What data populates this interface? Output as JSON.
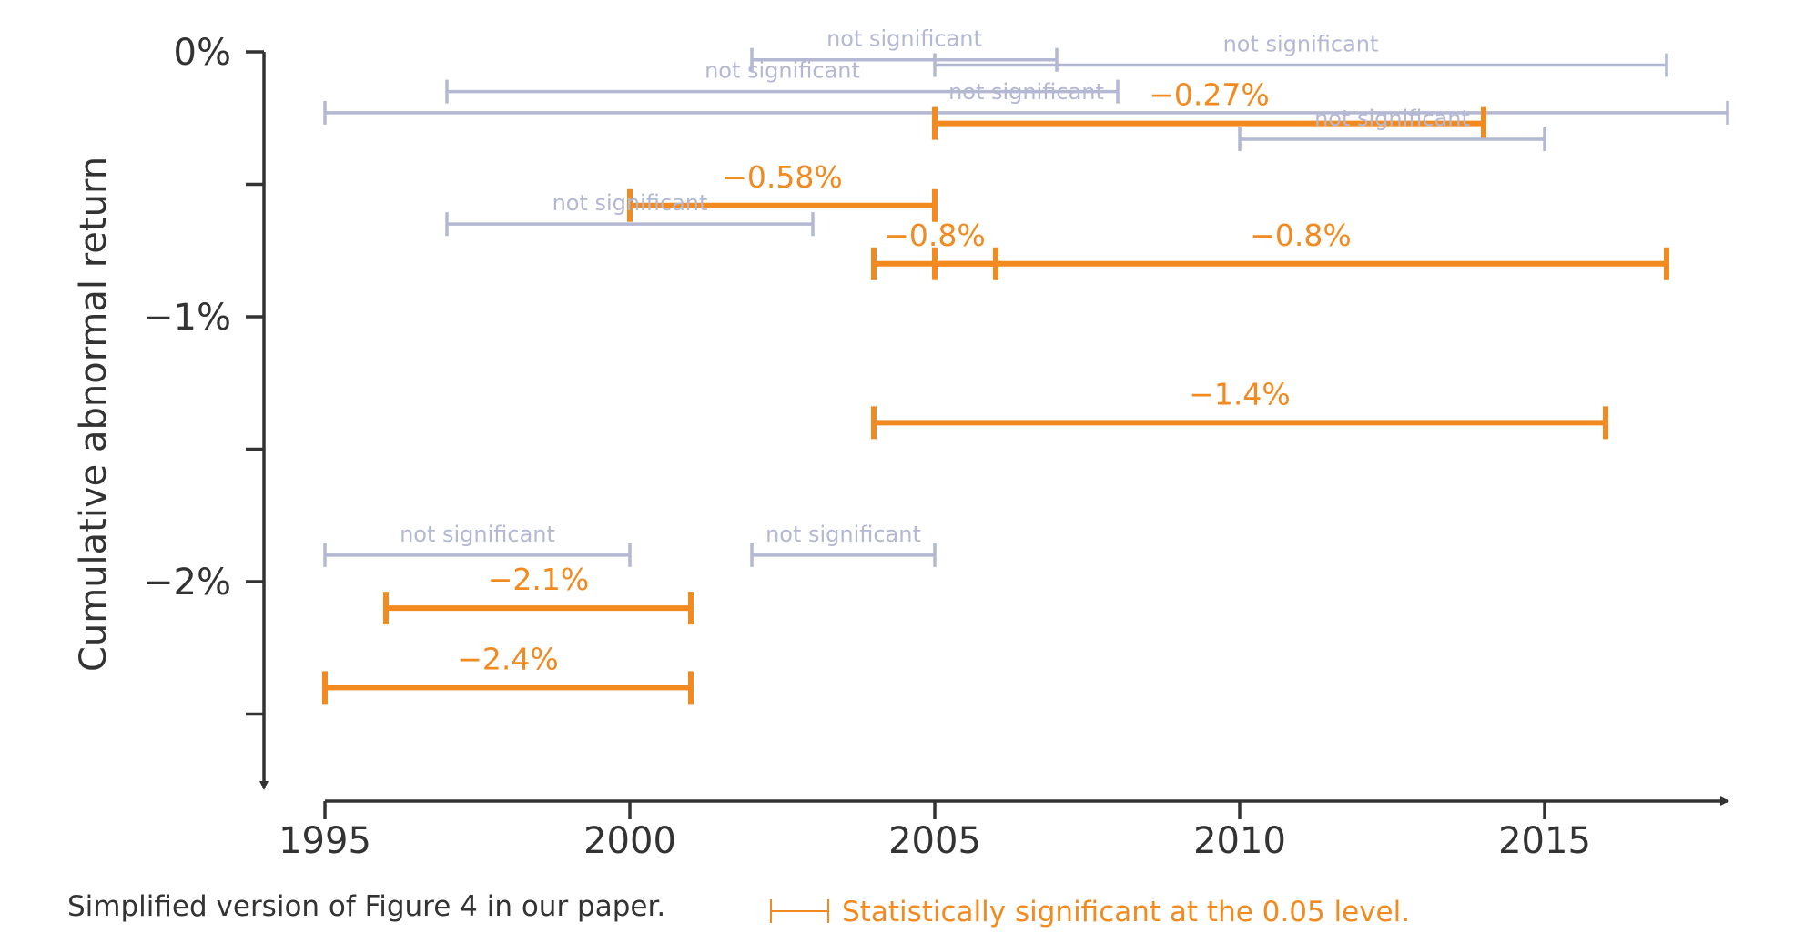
{
  "chart_data": {
    "type": "interval",
    "title": "",
    "xlabel": "",
    "ylabel": "Cumulative abnormal return",
    "xlim": [
      1995,
      2018
    ],
    "ylim": [
      -2.7,
      0
    ],
    "x_ticks": [
      "1995",
      "2000",
      "2005",
      "2010",
      "2015"
    ],
    "y_ticks": [
      "0%",
      "−1%",
      "−2%"
    ],
    "y_minor_ticks": [
      -0.5,
      -1.5,
      -2.5
    ],
    "colors": {
      "significant": "#f28a1f",
      "not_significant": "#b4b8d3",
      "axis": "#333333"
    },
    "intervals": [
      {
        "start": 2002,
        "end": 2007,
        "y": -0.03,
        "significant": false,
        "label": "not significant"
      },
      {
        "start": 2005,
        "end": 2017,
        "y": -0.05,
        "significant": false,
        "label": "not significant"
      },
      {
        "start": 1997,
        "end": 2008,
        "y": -0.15,
        "significant": false,
        "label": "not significant"
      },
      {
        "start": 1995,
        "end": 2018,
        "y": -0.23,
        "significant": false,
        "label": "not significant"
      },
      {
        "start": 2005,
        "end": 2014,
        "y": -0.27,
        "significant": true,
        "label": "−0.27%"
      },
      {
        "start": 2010,
        "end": 2015,
        "y": -0.33,
        "significant": false,
        "label": "not significant"
      },
      {
        "start": 2000,
        "end": 2005,
        "y": -0.58,
        "significant": true,
        "label": "−0.58%"
      },
      {
        "start": 1997,
        "end": 2003,
        "y": -0.65,
        "significant": false,
        "label": "not significant"
      },
      {
        "start": 2004,
        "end": 2006,
        "y": -0.8,
        "significant": true,
        "label": "−0.8%"
      },
      {
        "start": 2005,
        "end": 2017,
        "y": -0.8,
        "significant": true,
        "label": "−0.8%"
      },
      {
        "start": 2004,
        "end": 2016,
        "y": -1.4,
        "significant": true,
        "label": "−1.4%"
      },
      {
        "start": 1995,
        "end": 2000,
        "y": -1.9,
        "significant": false,
        "label": "not significant"
      },
      {
        "start": 2002,
        "end": 2005,
        "y": -1.9,
        "significant": false,
        "label": "not significant"
      },
      {
        "start": 1996,
        "end": 2001,
        "y": -2.1,
        "significant": true,
        "label": "−2.1%"
      },
      {
        "start": 1995,
        "end": 2001,
        "y": -2.4,
        "significant": true,
        "label": "−2.4%"
      }
    ],
    "legend": {
      "label": "Statistically significant at the 0.05 level.",
      "placement": "bottom-right"
    }
  },
  "caption": "Simplified version of Figure 4 in our paper."
}
